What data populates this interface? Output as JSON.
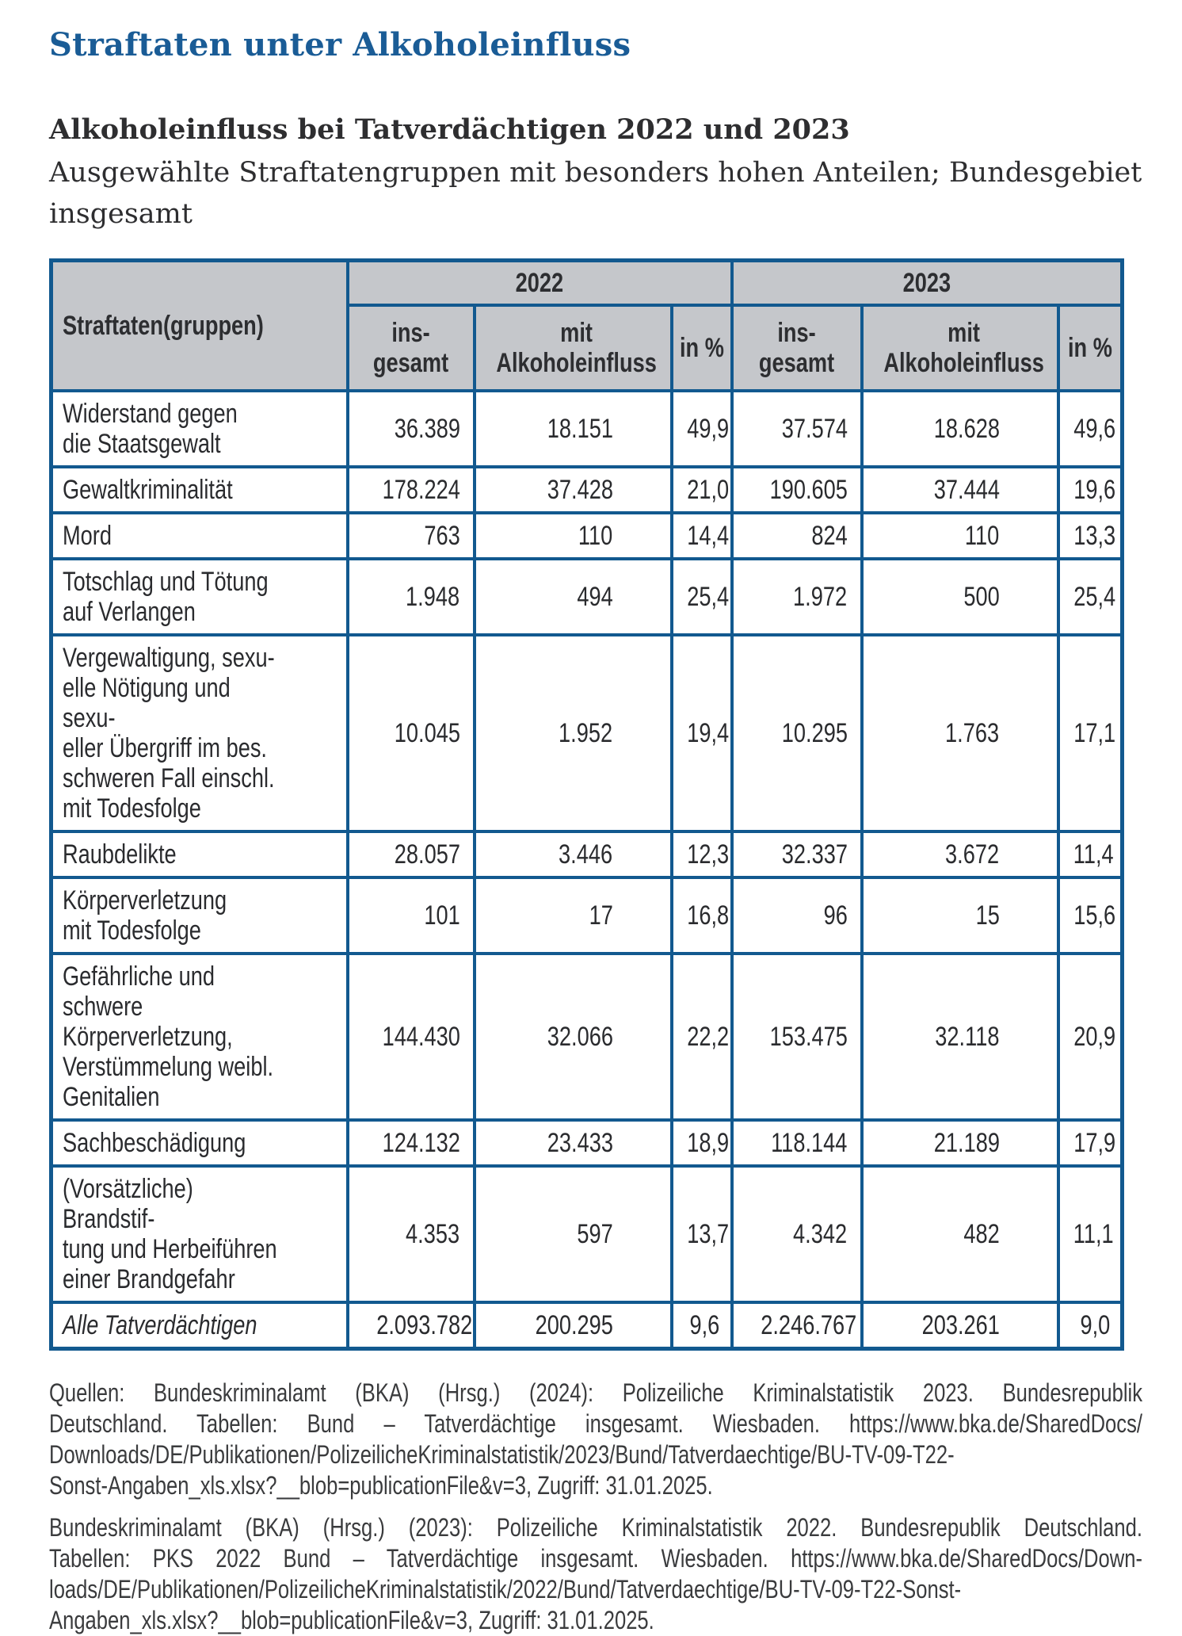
{
  "page": {
    "title": "Straftaten unter Alkoholeinfluss",
    "subtitle_bold": "Alkoholeinfluss bei Tatverdächtigen 2022 und 2023",
    "subtitle": "Ausgewählte Straftatengruppen mit besonders hohen Anteilen; Bundesgebiet insgesamt"
  },
  "colors": {
    "title_blue": "#1a5c96",
    "table_border_blue": "#12598f",
    "header_gray": "#c5c7cb",
    "text_dark": "#2a2b2e"
  },
  "table": {
    "corner_header": "Straftaten(gruppen)",
    "year_groups": [
      "2022",
      "2023"
    ],
    "col_headers": [
      "ins-\ngesamt",
      "mit\nAlkoholeinfluss",
      "in %",
      "ins-\ngesamt",
      "mit\nAlkoholeinfluss",
      "in %"
    ],
    "rows": [
      {
        "label": "Widerstand gegen\ndie Staatsgewalt",
        "italic": false,
        "values": [
          "36.389",
          "18.151",
          "49,9",
          "37.574",
          "18.628",
          "49,6"
        ]
      },
      {
        "label": "Gewaltkriminalität",
        "italic": false,
        "values": [
          "178.224",
          "37.428",
          "21,0",
          "190.605",
          "37.444",
          "19,6"
        ]
      },
      {
        "label": "Mord",
        "italic": false,
        "values": [
          "763",
          "110",
          "14,4",
          "824",
          "110",
          "13,3"
        ]
      },
      {
        "label": "Totschlag und Tötung\nauf Verlangen",
        "italic": false,
        "values": [
          "1.948",
          "494",
          "25,4",
          "1.972",
          "500",
          "25,4"
        ]
      },
      {
        "label": "Vergewaltigung, sexu-\nelle Nötigung und sexu-\neller Übergriff im bes.\nschweren Fall einschl.\nmit Todesfolge",
        "italic": false,
        "values": [
          "10.045",
          "1.952",
          "19,4",
          "10.295",
          "1.763",
          "17,1"
        ]
      },
      {
        "label": "Raubdelikte",
        "italic": false,
        "values": [
          "28.057",
          "3.446",
          "12,3",
          "32.337",
          "3.672",
          "11,4"
        ]
      },
      {
        "label": "Körperverletzung\nmit Todesfolge",
        "italic": false,
        "values": [
          "101",
          "17",
          "16,8",
          "96",
          "15",
          "15,6"
        ]
      },
      {
        "label": "Gefährliche und schwere\nKörperverletzung,\nVerstümmelung weibl.\nGenitalien",
        "italic": false,
        "values": [
          "144.430",
          "32.066",
          "22,2",
          "153.475",
          "32.118",
          "20,9"
        ]
      },
      {
        "label": "Sachbeschädigung",
        "italic": false,
        "values": [
          "124.132",
          "23.433",
          "18,9",
          "118.144",
          "21.189",
          "17,9"
        ]
      },
      {
        "label": "(Vorsätzliche) Brandstif-\ntung und Herbeiführen\neiner Brandgefahr",
        "italic": false,
        "values": [
          "4.353",
          "597",
          "13,7",
          "4.342",
          "482",
          "11,1"
        ]
      },
      {
        "label": "Alle Tatverdächtigen",
        "italic": true,
        "values": [
          "2.093.782",
          "200.295",
          "9,6",
          "2.246.767",
          "203.261",
          "9,0"
        ]
      }
    ]
  },
  "sources": [
    {
      "lines": [
        "Quellen: Bundeskriminalamt (BKA) (Hrsg.) (2024): Polizeiliche Kriminalstatistik 2023. Bundesrepublik",
        "Deutschland. Tabellen: Bund – Tatverdächtige insgesamt. Wiesbaden. https://www.bka.de/SharedDocs/",
        "Downloads/DE/Publikationen/PolizeilicheKriminalstatistik/2023/Bund/Tatverdaechtige/BU-TV-09-T22-",
        "Sonst-Angaben_xls.xlsx?__blob=publicationFile&v=3, Zugriff: 31.01.2025."
      ]
    },
    {
      "lines": [
        "Bundeskriminalamt (BKA) (Hrsg.) (2023): Polizeiliche Kriminalstatistik 2022. Bundesrepublik Deutschland.",
        "Tabellen: PKS 2022 Bund – Tatverdächtige insgesamt. Wiesbaden. https://www.bka.de/SharedDocs/Down-",
        "loads/DE/Publikationen/PolizeilicheKriminalstatistik/2022/Bund/Tatverdaechtige/BU-TV-09-T22-Sonst-",
        "Angaben_xls.xlsx?__blob=publicationFile&v=3, Zugriff: 31.01.2025."
      ]
    }
  ]
}
